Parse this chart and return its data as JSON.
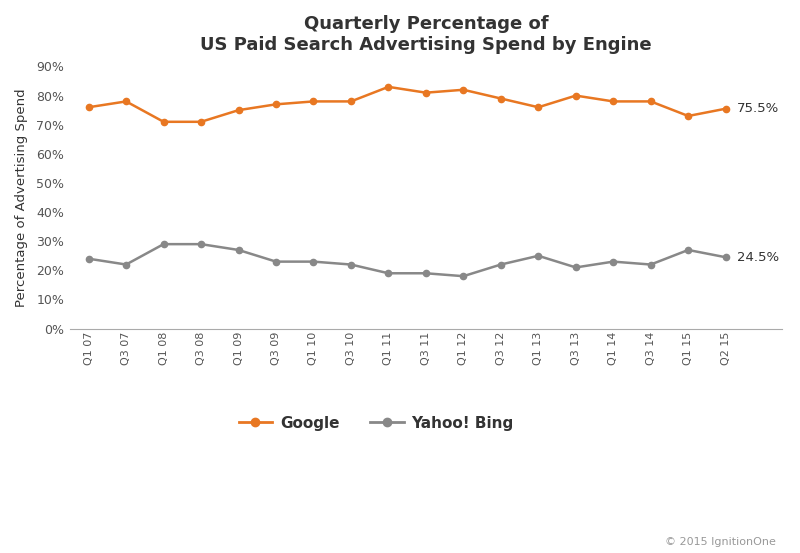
{
  "title_line1": "Quarterly Percentage of",
  "title_line2": "US Paid Search Advertising Spend by Engine",
  "ylabel": "Percentage of Advertising Spend",
  "x_labels": [
    "Q1 07",
    "Q3 07",
    "Q1 08",
    "Q3 08",
    "Q1 09",
    "Q3 09",
    "Q1 10",
    "Q3 10",
    "Q1 11",
    "Q3 11",
    "Q1 12",
    "Q3 12",
    "Q1 13",
    "Q3 13",
    "Q1 14",
    "Q3 14",
    "Q1 15",
    "Q2 15"
  ],
  "google_values": [
    76,
    78,
    71,
    71,
    75,
    77,
    78,
    78,
    83,
    81,
    82,
    79,
    76,
    80,
    78,
    78,
    73,
    75.5
  ],
  "bing_values": [
    24,
    22,
    29,
    29,
    27,
    23,
    23,
    22,
    19,
    19,
    18,
    22,
    25,
    21,
    23,
    22,
    27,
    24.5
  ],
  "google_color": "#E87722",
  "bing_color": "#888888",
  "google_label": "Google",
  "bing_label": "Yahoo! Bing",
  "google_end_label": "75.5%",
  "bing_end_label": "24.5%",
  "ylim": [
    0,
    90
  ],
  "yticks": [
    0,
    10,
    20,
    30,
    40,
    50,
    60,
    70,
    80,
    90
  ],
  "copyright_text": "© 2015 IgnitionOne",
  "background_color": "#ffffff",
  "title_color": "#333333",
  "axis_color": "#aaaaaa",
  "tick_color": "#555555"
}
